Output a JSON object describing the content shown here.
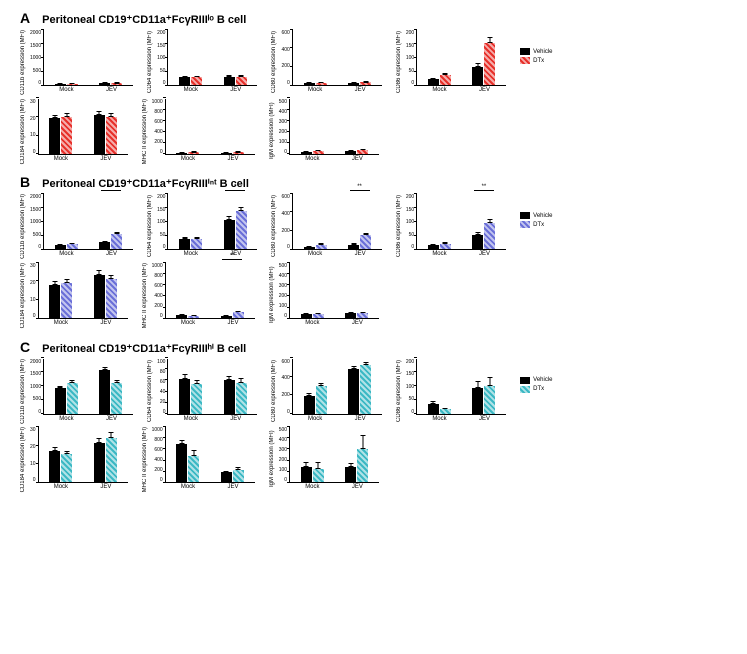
{
  "colors": {
    "vehicle": "#000000",
    "A_dtx": "#e7302a",
    "B_dtx": "#6a6fd8",
    "C_dtx": "#3bb8c4"
  },
  "legend": {
    "vehicle": "Vehicle",
    "dtx": "DTx"
  },
  "panels": [
    {
      "letter": "A",
      "title_html": "Peritoneal CD19⁺CD11a⁺FcγRIIIˡᵒ B cell",
      "dtx_color": "A_dtx",
      "rows": [
        [
          {
            "ylabel": "CD11b expression (MFI)",
            "ylim": [
              0,
              2000
            ],
            "ystep": 500,
            "groups": [
              {
                "x": "Mock",
                "v": [
                  40,
                  50
                ],
                "e": [
                  10,
                  10
                ]
              },
              {
                "x": "JEV",
                "v": [
                  60,
                  70
                ],
                "e": [
                  10,
                  10
                ]
              }
            ]
          },
          {
            "ylabel": "CD64 expression (MFI)",
            "ylim": [
              0,
              200
            ],
            "ystep": 50,
            "groups": [
              {
                "x": "Mock",
                "v": [
                  28,
                  28
                ],
                "e": [
                  5,
                  5
                ]
              },
              {
                "x": "JEV",
                "v": [
                  30,
                  30
                ],
                "e": [
                  5,
                  5
                ]
              }
            ]
          },
          {
            "ylabel": "CD80 expression (MFI)",
            "ylim": [
              0,
              600
            ],
            "ystep": 200,
            "groups": [
              {
                "x": "Mock",
                "v": [
                  20,
                  25
                ],
                "e": [
                  5,
                  5
                ]
              },
              {
                "x": "JEV",
                "v": [
                  25,
                  30
                ],
                "e": [
                  5,
                  5
                ]
              }
            ]
          },
          {
            "ylabel": "CD86 expression (MFI)",
            "ylim": [
              0,
              200
            ],
            "ystep": 50,
            "groups": [
              {
                "x": "Mock",
                "v": [
                  20,
                  35
                ],
                "e": [
                  5,
                  8
                ]
              },
              {
                "x": "JEV",
                "v": [
                  65,
                  150
                ],
                "e": [
                  15,
                  20
                ]
              }
            ]
          }
        ],
        [
          {
            "ylabel": "CD184 expression (MFI)",
            "ylim": [
              0,
              30
            ],
            "ystep": 10,
            "groups": [
              {
                "x": "Mock",
                "v": [
                  19,
                  20
                ],
                "e": [
                  2,
                  2
                ]
              },
              {
                "x": "JEV",
                "v": [
                  21,
                  20
                ],
                "e": [
                  2,
                  2
                ]
              }
            ]
          },
          {
            "ylabel": "MHC II expression (MFI)",
            "ylim": [
              0,
              1000
            ],
            "ystep": 200,
            "groups": [
              {
                "x": "Mock",
                "v": [
                  20,
                  30
                ],
                "e": [
                  5,
                  5
                ]
              },
              {
                "x": "JEV",
                "v": [
                  25,
                  30
                ],
                "e": [
                  5,
                  5
                ]
              }
            ]
          },
          {
            "ylabel": "IgM expression (MFI)",
            "ylim": [
              0,
              500
            ],
            "ystep": 100,
            "groups": [
              {
                "x": "Mock",
                "v": [
                  20,
                  30
                ],
                "e": [
                  5,
                  5
                ]
              },
              {
                "x": "JEV",
                "v": [
                  25,
                  35
                ],
                "e": [
                  5,
                  5
                ]
              }
            ]
          }
        ]
      ]
    },
    {
      "letter": "B",
      "title_html": "Peritoneal CD19⁺CD11a⁺FcγRIIIⁱⁿᵗ B cell",
      "dtx_color": "B_dtx",
      "rows": [
        [
          {
            "ylabel": "CD11b expression (MFI)",
            "ylim": [
              0,
              2000
            ],
            "ystep": 500,
            "groups": [
              {
                "x": "Mock",
                "v": [
                  150,
                  200
                ],
                "e": [
                  30,
                  30
                ]
              },
              {
                "x": "JEV",
                "v": [
                  250,
                  550
                ],
                "e": [
                  40,
                  60
                ],
                "sig": "***"
              }
            ]
          },
          {
            "ylabel": "CD64 expression (MFI)",
            "ylim": [
              0,
              200
            ],
            "ystep": 50,
            "groups": [
              {
                "x": "Mock",
                "v": [
                  35,
                  35
                ],
                "e": [
                  8,
                  8
                ]
              },
              {
                "x": "JEV",
                "v": [
                  105,
                  135
                ],
                "e": [
                  15,
                  15
                ],
                "sig": "*"
              }
            ]
          },
          {
            "ylabel": "CD80 expression (MFI)",
            "ylim": [
              0,
              600
            ],
            "ystep": 200,
            "groups": [
              {
                "x": "Mock",
                "v": [
                  25,
                  50
                ],
                "e": [
                  8,
                  15
                ]
              },
              {
                "x": "JEV",
                "v": [
                  50,
                  150
                ],
                "e": [
                  15,
                  25
                ],
                "sig": "**"
              }
            ]
          },
          {
            "ylabel": "CD86 expression (MFI)",
            "ylim": [
              0,
              200
            ],
            "ystep": 50,
            "groups": [
              {
                "x": "Mock",
                "v": [
                  15,
                  20
                ],
                "e": [
                  5,
                  5
                ]
              },
              {
                "x": "JEV",
                "v": [
                  50,
                  95
                ],
                "e": [
                  10,
                  12
                ],
                "sig": "**"
              }
            ]
          }
        ],
        [
          {
            "ylabel": "CD184 expression (MFI)",
            "ylim": [
              0,
              30
            ],
            "ystep": 10,
            "groups": [
              {
                "x": "Mock",
                "v": [
                  18,
                  19
                ],
                "e": [
                  2,
                  2
                ]
              },
              {
                "x": "JEV",
                "v": [
                  23,
                  21
                ],
                "e": [
                  3,
                  2
                ]
              }
            ]
          },
          {
            "ylabel": "MHC II expression (MFI)",
            "ylim": [
              0,
              1000
            ],
            "ystep": 200,
            "groups": [
              {
                "x": "Mock",
                "v": [
                  60,
                  40
                ],
                "e": [
                  15,
                  10
                ]
              },
              {
                "x": "JEV",
                "v": [
                  40,
                  110
                ],
                "e": [
                  10,
                  20
                ],
                "sig": "**"
              }
            ]
          },
          {
            "ylabel": "IgM expression (MFI)",
            "ylim": [
              0,
              500
            ],
            "ystep": 100,
            "groups": [
              {
                "x": "Mock",
                "v": [
                  40,
                  35
                ],
                "e": [
                  8,
                  8
                ]
              },
              {
                "x": "JEV",
                "v": [
                  45,
                  50
                ],
                "e": [
                  8,
                  8
                ]
              }
            ]
          }
        ]
      ]
    },
    {
      "letter": "C",
      "title_html": "Peritoneal CD19⁺CD11a⁺FcγRIIIʰⁱ B cell",
      "dtx_color": "C_dtx",
      "rows": [
        [
          {
            "ylabel": "CD11b expression (MFI)",
            "ylim": [
              0,
              2000
            ],
            "ystep": 500,
            "groups": [
              {
                "x": "Mock",
                "v": [
                  900,
                  1100
                ],
                "e": [
                  80,
                  100
                ]
              },
              {
                "x": "JEV",
                "v": [
                  1550,
                  1100
                ],
                "e": [
                  100,
                  100
                ]
              }
            ]
          },
          {
            "ylabel": "CD64 expression (MFI)",
            "ylim": [
              0,
              100
            ],
            "ystep": 20,
            "groups": [
              {
                "x": "Mock",
                "v": [
                  62,
                  52
                ],
                "e": [
                  8,
                  8
                ]
              },
              {
                "x": "JEV",
                "v": [
                  60,
                  55
                ],
                "e": [
                  8,
                  8
                ]
              }
            ]
          },
          {
            "ylabel": "CD80 expression (MFI)",
            "ylim": [
              0,
              600
            ],
            "ystep": 200,
            "groups": [
              {
                "x": "Mock",
                "v": [
                  190,
                  300
                ],
                "e": [
                  30,
                  30
                ]
              },
              {
                "x": "JEV",
                "v": [
                  480,
                  520
                ],
                "e": [
                  30,
                  30
                ]
              }
            ]
          },
          {
            "ylabel": "CD86 expression (MFI)",
            "ylim": [
              0,
              200
            ],
            "ystep": 50,
            "groups": [
              {
                "x": "Mock",
                "v": [
                  35,
                  15
                ],
                "e": [
                  10,
                  5
                ]
              },
              {
                "x": "JEV",
                "v": [
                  90,
                  100
                ],
                "e": [
                  25,
                  30
                ]
              }
            ]
          }
        ],
        [
          {
            "ylabel": "CD184 expression (MFI)",
            "ylim": [
              0,
              30
            ],
            "ystep": 10,
            "groups": [
              {
                "x": "Mock",
                "v": [
                  17,
                  15
                ],
                "e": [
                  2,
                  2
                ]
              },
              {
                "x": "JEV",
                "v": [
                  21,
                  24
                ],
                "e": [
                  3,
                  3
                ]
              }
            ]
          },
          {
            "ylabel": "MHC II expression (MFI)",
            "ylim": [
              0,
              1000
            ],
            "ystep": 200,
            "groups": [
              {
                "x": "Mock",
                "v": [
                  680,
                  480
                ],
                "e": [
                  80,
                  100
                ]
              },
              {
                "x": "JEV",
                "v": [
                  180,
                  230
                ],
                "e": [
                  30,
                  40
                ]
              }
            ]
          },
          {
            "ylabel": "IgM expression (MFI)",
            "ylim": [
              0,
              500
            ],
            "ystep": 100,
            "groups": [
              {
                "x": "Mock",
                "v": [
                  140,
                  120
                ],
                "e": [
                  40,
                  60
                ]
              },
              {
                "x": "JEV",
                "v": [
                  140,
                  300
                ],
                "e": [
                  30,
                  120
                ]
              }
            ]
          }
        ]
      ]
    }
  ]
}
